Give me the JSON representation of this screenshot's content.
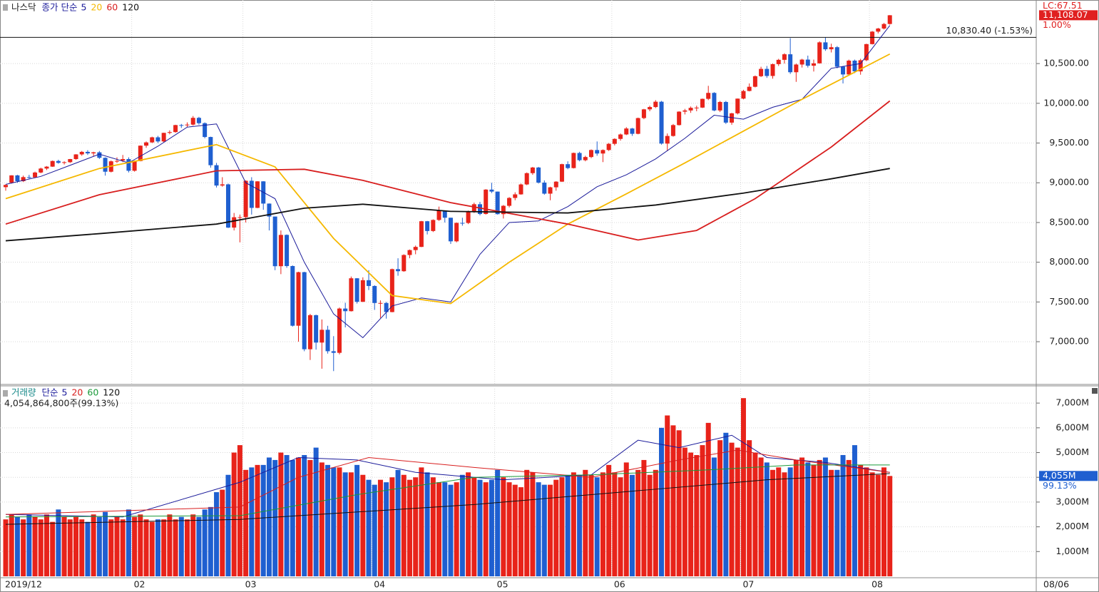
{
  "chart_data": [
    {
      "type": "candlestick",
      "title": "나스닥",
      "ma_label": "종가 단순",
      "up_color": "#e8231a",
      "down_color": "#1f5fd0",
      "ylim": [
        6480,
        11300
      ],
      "yticks": [
        {
          "value": 7000,
          "label": "7,000.00"
        },
        {
          "value": 7500,
          "label": "7,500.00"
        },
        {
          "value": 8000,
          "label": "8,000.00"
        },
        {
          "value": 8500,
          "label": "8,500.00"
        },
        {
          "value": 9000,
          "label": "9,000.00"
        },
        {
          "value": 9500,
          "label": "9,500.00"
        },
        {
          "value": 10000,
          "label": "10,000.00"
        },
        {
          "value": 10500,
          "label": "10,500.00"
        }
      ],
      "reference": {
        "value": 10830.4,
        "label": "10,830.40 (-1.53%)"
      },
      "last": {
        "value": 11108.07,
        "label": "11,108.07"
      },
      "change_label": "1.00%",
      "lc_label": "LC:67.51",
      "open": [
        8945,
        9000,
        9093,
        9020,
        9071,
        9068,
        9129,
        9179,
        9203,
        9274,
        9251,
        9259,
        9298,
        9357,
        9389,
        9370,
        9383,
        9314,
        9139,
        9270,
        9280,
        9298,
        9151,
        9273,
        9467,
        9508,
        9572,
        9520,
        9628,
        9638,
        9726,
        9725,
        9732,
        9817,
        9750,
        9576,
        9221,
        8965,
        8980,
        8436,
        8566,
        8567,
        9025,
        8684,
        9018,
        8738,
        8575,
        7950,
        8344,
        7952,
        7201,
        7875,
        6905,
        7334,
        6989,
        7150,
        6880,
        6860,
        7417,
        7384,
        7798,
        7502,
        7774,
        7701,
        7487,
        7487,
        7373,
        7913,
        7887,
        8091,
        8153,
        8193,
        8516,
        8393,
        8532,
        8650,
        8560,
        8263,
        8495,
        8494,
        8634,
        8730,
        8607,
        8914,
        8889,
        8605,
        8710,
        8809,
        8854,
        8979,
        9121,
        9192,
        9002,
        8863,
        8943,
        9014,
        9234,
        9185,
        9375,
        9284,
        9324,
        9412,
        9368,
        9412,
        9490,
        9552,
        9608,
        9683,
        9616,
        9814,
        9924,
        9953,
        10020,
        9493,
        9589,
        9726,
        9895,
        9910,
        9943,
        9946,
        10056,
        10131,
        9910,
        10017,
        9757,
        9874,
        10059,
        10155,
        10208,
        10341,
        10433,
        10344,
        10493,
        10547,
        10617,
        10391,
        10488,
        10550,
        10473,
        10503,
        10767,
        10680,
        10706,
        10461,
        10363,
        10537,
        10402,
        10542,
        10745,
        10902,
        10941,
        10998
      ],
      "high": [
        8980,
        9095,
        9100,
        9090,
        9100,
        9140,
        9190,
        9210,
        9280,
        9290,
        9270,
        9300,
        9360,
        9400,
        9410,
        9390,
        9400,
        9320,
        9280,
        9320,
        9350,
        9320,
        9280,
        9470,
        9520,
        9580,
        9590,
        9630,
        9660,
        9730,
        9740,
        9760,
        9840,
        9830,
        9760,
        9580,
        9250,
        9070,
        8990,
        8620,
        8600,
        9030,
        9070,
        9020,
        9020,
        8740,
        8575,
        8400,
        8350,
        7960,
        7880,
        7880,
        7350,
        7340,
        7280,
        7200,
        7070,
        7430,
        7490,
        7820,
        7800,
        7810,
        7900,
        7710,
        7520,
        7500,
        7920,
        8050,
        8100,
        8160,
        8210,
        8520,
        8520,
        8540,
        8700,
        8650,
        8560,
        8500,
        8560,
        8650,
        8750,
        8760,
        8920,
        9000,
        8890,
        8720,
        8820,
        8880,
        8990,
        9130,
        9200,
        9200,
        9030,
        8950,
        9020,
        9240,
        9270,
        9380,
        9390,
        9340,
        9420,
        9520,
        9420,
        9500,
        9560,
        9620,
        9700,
        9690,
        9820,
        9930,
        9970,
        10040,
        10030,
        9620,
        9740,
        9900,
        9930,
        9960,
        9970,
        10060,
        10220,
        10140,
        10030,
        10030,
        9880,
        10060,
        10170,
        10250,
        10350,
        10460,
        10470,
        10500,
        10560,
        10630,
        10820,
        10500,
        10560,
        10600,
        10550,
        10780,
        10830,
        10750,
        10720,
        10470,
        10550,
        10550,
        10560,
        10750,
        10910,
        10950,
        11010,
        11110
      ],
      "low": [
        8900,
        8990,
        9000,
        9010,
        9050,
        9060,
        9120,
        9160,
        9200,
        9240,
        9230,
        9250,
        9290,
        9340,
        9350,
        9330,
        9300,
        9090,
        9130,
        9250,
        9260,
        9130,
        9140,
        9270,
        9440,
        9500,
        9500,
        9510,
        9610,
        9630,
        9690,
        9700,
        9720,
        9730,
        9560,
        9190,
        8940,
        8950,
        8430,
        8400,
        8250,
        8500,
        8600,
        8680,
        8660,
        8400,
        7900,
        7850,
        7930,
        7190,
        7000,
        6880,
        6770,
        6900,
        6660,
        6850,
        6630,
        6840,
        7180,
        7380,
        7480,
        7500,
        7650,
        7400,
        7300,
        7290,
        7370,
        7830,
        7880,
        8050,
        8100,
        8190,
        8350,
        8380,
        8520,
        8500,
        8230,
        8250,
        8460,
        8480,
        8620,
        8590,
        8600,
        8870,
        8600,
        8550,
        8690,
        8780,
        8850,
        8970,
        9100,
        8990,
        8850,
        8780,
        8900,
        9010,
        9170,
        9180,
        9270,
        9270,
        9310,
        9340,
        9260,
        9400,
        9470,
        9530,
        9600,
        9590,
        9610,
        9800,
        9900,
        9940,
        9480,
        9400,
        9580,
        9720,
        9860,
        9880,
        9900,
        9940,
        10040,
        9900,
        9890,
        9740,
        9730,
        9860,
        10050,
        10150,
        10200,
        10330,
        10320,
        10310,
        10470,
        10500,
        10370,
        10270,
        10450,
        10450,
        10400,
        10500,
        10660,
        10640,
        10440,
        10250,
        10360,
        10380,
        10360,
        10530,
        10740,
        10880,
        10930,
        10990
      ],
      "close": [
        8973,
        9093,
        9020,
        9071,
        9068,
        9129,
        9179,
        9203,
        9274,
        9251,
        9259,
        9298,
        9357,
        9389,
        9370,
        9383,
        9314,
        9139,
        9270,
        9275,
        9298,
        9151,
        9273,
        9467,
        9508,
        9572,
        9520,
        9628,
        9638,
        9726,
        9725,
        9732,
        9817,
        9750,
        9576,
        9221,
        8965,
        8980,
        8436,
        8566,
        8567,
        9025,
        8684,
        9018,
        8738,
        8575,
        7950,
        8344,
        7952,
        7201,
        7875,
        6905,
        7334,
        6989,
        7150,
        6880,
        6860,
        7417,
        7384,
        7798,
        7502,
        7774,
        7701,
        7487,
        7487,
        7373,
        7913,
        7887,
        8091,
        8153,
        8193,
        8516,
        8393,
        8532,
        8650,
        8560,
        8263,
        8495,
        8494,
        8634,
        8730,
        8607,
        8914,
        8889,
        8605,
        8710,
        8809,
        8854,
        8979,
        9121,
        9192,
        9002,
        8863,
        8943,
        9014,
        9234,
        9185,
        9375,
        9284,
        9324,
        9412,
        9368,
        9412,
        9490,
        9552,
        9608,
        9683,
        9616,
        9814,
        9924,
        9953,
        10020,
        9493,
        9589,
        9726,
        9895,
        9910,
        9943,
        9946,
        10056,
        10131,
        9910,
        10017,
        9757,
        9874,
        10059,
        10155,
        10208,
        10341,
        10433,
        10344,
        10493,
        10547,
        10617,
        10391,
        10488,
        10550,
        10473,
        10503,
        10767,
        10680,
        10706,
        10461,
        10363,
        10537,
        10402,
        10542,
        10745,
        10902,
        10941,
        10998,
        11108.07
      ],
      "ma": [
        {
          "name": "5",
          "color": "#1a1a9a",
          "x": [
            0,
            6,
            11,
            16,
            21,
            26,
            31,
            36,
            41,
            46,
            51,
            56,
            61,
            66,
            71,
            76,
            81,
            86,
            91,
            96,
            101,
            106,
            111,
            116,
            121,
            126,
            131,
            136,
            141,
            146,
            151
          ],
          "values": [
            8980,
            9080,
            9220,
            9360,
            9250,
            9460,
            9700,
            9740,
            9000,
            8800,
            8000,
            7350,
            7050,
            7450,
            7550,
            7500,
            8100,
            8500,
            8520,
            8700,
            8950,
            9100,
            9300,
            9560,
            9850,
            9800,
            9950,
            10050,
            10440,
            10500,
            10980
          ]
        },
        {
          "name": "20",
          "color": "#f5b800",
          "x": [
            0,
            16,
            36,
            46,
            56,
            66,
            76,
            86,
            96,
            106,
            116,
            126,
            136,
            146,
            151
          ],
          "values": [
            8800,
            9180,
            9480,
            9200,
            8300,
            7580,
            7480,
            8000,
            8480,
            8860,
            9250,
            9650,
            10050,
            10430,
            10620
          ]
        },
        {
          "name": "60",
          "color": "#d81e1e",
          "x": [
            0,
            16,
            36,
            51,
            61,
            76,
            96,
            108,
            118,
            128,
            141,
            151
          ],
          "values": [
            8480,
            8850,
            9150,
            9170,
            9030,
            8750,
            8480,
            8280,
            8400,
            8800,
            9450,
            10030
          ]
        },
        {
          "name": "120",
          "color": "#111111",
          "x": [
            0,
            16,
            36,
            51,
            61,
            76,
            96,
            111,
            126,
            141,
            151
          ],
          "values": [
            8270,
            8360,
            8480,
            8680,
            8730,
            8640,
            8620,
            8720,
            8870,
            9050,
            9180
          ]
        }
      ]
    },
    {
      "type": "bar",
      "title": "거래량",
      "ma_label": "단순",
      "headline": "4,054,864,800주(99.13%)",
      "ylim": [
        0,
        7580
      ],
      "yticks": [
        {
          "value": 1000,
          "label": "1,000M"
        },
        {
          "value": 2000,
          "label": "2,000M"
        },
        {
          "value": 3000,
          "label": "3,000M"
        },
        {
          "value": 4000,
          "label": "4,000M"
        },
        {
          "value": 5000,
          "label": "5,000M"
        },
        {
          "value": 6000,
          "label": "6,000M"
        },
        {
          "value": 7000,
          "label": "7,000M"
        }
      ],
      "last": {
        "value": 4054.8648,
        "label": "4,055M"
      },
      "ratio_label": "99.13%",
      "xticks": [
        {
          "value": 0,
          "label": "2019/12"
        },
        {
          "value": 22,
          "label": "02"
        },
        {
          "value": 41,
          "label": "03"
        },
        {
          "value": 63,
          "label": "04"
        },
        {
          "value": 84,
          "label": "05"
        },
        {
          "value": 104,
          "label": "06"
        },
        {
          "value": 126,
          "label": "07"
        },
        {
          "value": 148,
          "label": "08"
        }
      ],
      "x_end_label": "08/06",
      "values": [
        2300,
        2500,
        2400,
        2300,
        2500,
        2400,
        2300,
        2500,
        2200,
        2700,
        2400,
        2300,
        2400,
        2300,
        2200,
        2500,
        2400,
        2600,
        2300,
        2400,
        2300,
        2700,
        2400,
        2500,
        2300,
        2200,
        2300,
        2300,
        2500,
        2300,
        2400,
        2300,
        2500,
        2400,
        2700,
        2800,
        3400,
        3500,
        4100,
        5000,
        5300,
        4300,
        4400,
        4500,
        4500,
        4800,
        4700,
        5000,
        4900,
        4700,
        4800,
        4900,
        4700,
        5200,
        4600,
        4500,
        4400,
        4400,
        4200,
        4200,
        4500,
        4100,
        3900,
        3700,
        3900,
        3800,
        4000,
        4300,
        4100,
        3900,
        4000,
        4400,
        4200,
        4000,
        3800,
        3800,
        3700,
        3800,
        4100,
        4200,
        4000,
        3900,
        3800,
        3900,
        4300,
        4000,
        3800,
        3700,
        3600,
        4300,
        4200,
        3800,
        3700,
        3700,
        3900,
        4000,
        4100,
        4200,
        4100,
        4300,
        4100,
        4000,
        4200,
        4500,
        4200,
        4000,
        4600,
        4100,
        4300,
        4700,
        4100,
        4300,
        6000,
        6500,
        6100,
        5900,
        5200,
        5000,
        4900,
        5300,
        6200,
        4800,
        5500,
        5800,
        5400,
        5200,
        7200,
        5500,
        5000,
        4800,
        4600,
        4300,
        4400,
        4200,
        4400,
        4700,
        4800,
        4600,
        4500,
        4700,
        4800,
        4300,
        4300,
        4900,
        4700,
        5300,
        4500,
        4400,
        4200,
        4100,
        4400,
        4054.8648
      ],
      "ma": [
        {
          "name": "5",
          "color": "#1a1a9a",
          "x": [
            0,
            20,
            40,
            50,
            60,
            70,
            85,
            100,
            108,
            115,
            124,
            130,
            140,
            151
          ],
          "values": [
            2500,
            2400,
            3800,
            4800,
            4700,
            4200,
            3900,
            4100,
            5500,
            5200,
            5700,
            4800,
            4600,
            4200
          ]
        },
        {
          "name": "20",
          "color": "#d81e1e",
          "x": [
            0,
            40,
            50,
            62,
            80,
            100,
            115,
            125,
            135,
            151
          ],
          "values": [
            2500,
            2800,
            4000,
            4800,
            4400,
            4000,
            4700,
            5100,
            4700,
            4200
          ]
        },
        {
          "name": "60",
          "color": "#1a9a3a",
          "x": [
            0,
            40,
            60,
            80,
            100,
            120,
            135,
            151
          ],
          "values": [
            2400,
            2450,
            3300,
            4000,
            4100,
            4300,
            4500,
            4500
          ]
        },
        {
          "name": "120",
          "color": "#111111",
          "x": [
            0,
            40,
            80,
            110,
            130,
            151
          ],
          "values": [
            2100,
            2300,
            2900,
            3500,
            3900,
            4150
          ]
        }
      ]
    }
  ]
}
